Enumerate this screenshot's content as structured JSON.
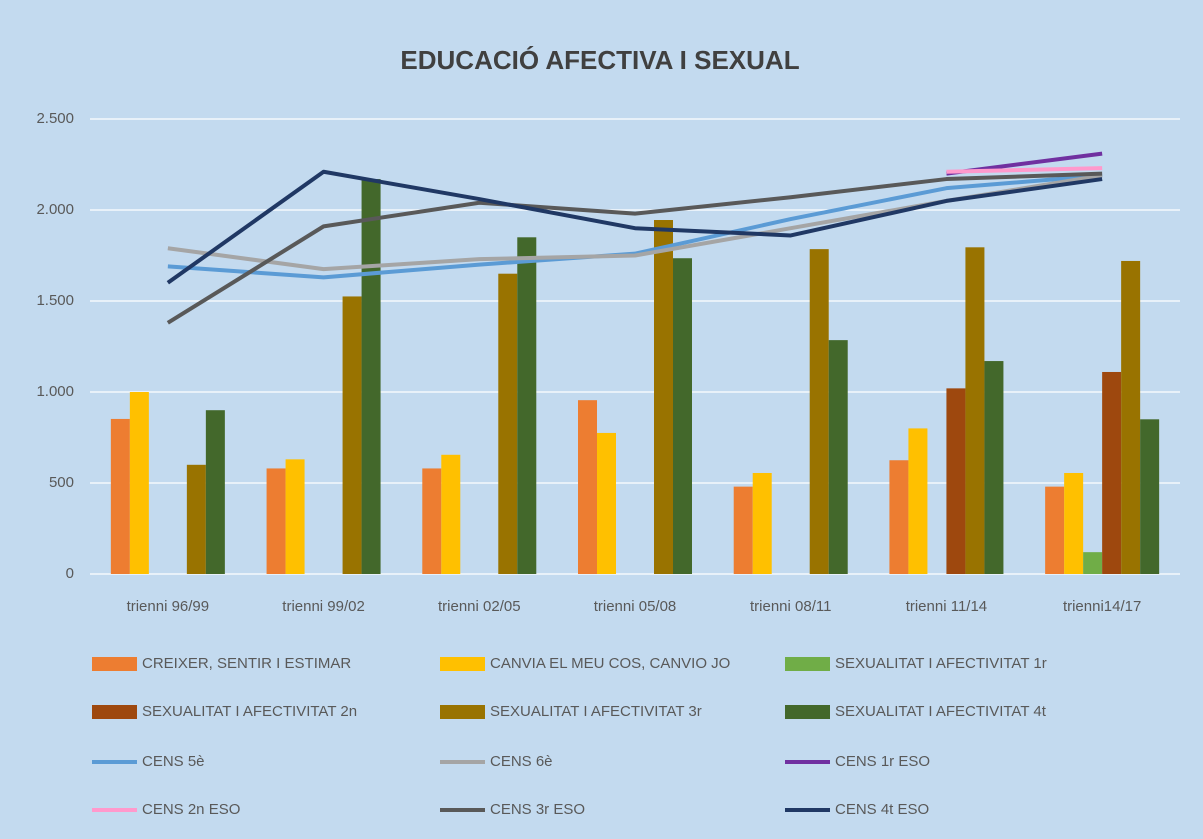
{
  "chart_data": {
    "type": "bar",
    "title": "EDUCACIÓ AFECTIVA I SEXUAL",
    "categories": [
      "trienni 96/99",
      "trienni 99/02",
      "trienni 02/05",
      "trienni 05/08",
      "trienni 08/11",
      "trienni 11/14",
      "trienni14/17"
    ],
    "ylim": [
      0,
      2500
    ],
    "yticks": [
      0,
      500,
      {
        "value": 1000,
        "label": "1.000"
      },
      {
        "value": 1500,
        "label": "1.500"
      },
      {
        "value": 2000,
        "label": "2.000"
      },
      {
        "value": 2500,
        "label": "2.500"
      }
    ],
    "grid": true,
    "legend": "bottom",
    "series": [
      {
        "name": "CREIXER, SENTIR I ESTIMAR",
        "color": "#ed7d31",
        "values": [
          852,
          580,
          580,
          955,
          480,
          625,
          480
        ]
      },
      {
        "name": "CANVIA EL MEU COS, CANVIO JO",
        "color": "#ffc000",
        "values": [
          1000,
          630,
          655,
          775,
          555,
          800,
          555
        ]
      },
      {
        "name": "SEXUALITAT I AFECTIVITAT 1r",
        "color": "#70ad47",
        "values": [
          null,
          null,
          null,
          null,
          null,
          null,
          120
        ]
      },
      {
        "name": "SEXUALITAT I AFECTIVITAT 2n",
        "color": "#9e480e",
        "values": [
          null,
          null,
          null,
          null,
          null,
          1020,
          1110
        ]
      },
      {
        "name": "SEXUALITAT I AFECTIVITAT 3r",
        "color": "#997300",
        "values": [
          600,
          1525,
          1650,
          1945,
          1785,
          1795,
          1720
        ]
      },
      {
        "name": "SEXUALITAT I AFECTIVITAT 4t",
        "color": "#43682b",
        "values": [
          900,
          2170,
          1850,
          1735,
          1285,
          1170,
          850
        ]
      },
      {
        "name": "CENS 5è",
        "type": "line",
        "color": "#5b9bd5",
        "values": [
          1690,
          1630,
          1700,
          1760,
          1950,
          2120,
          2190
        ]
      },
      {
        "name": "CENS 6è",
        "type": "line",
        "color": "#a5a5a5",
        "values": [
          1790,
          1675,
          1730,
          1750,
          1900,
          2050,
          2190
        ]
      },
      {
        "name": "CENS 1r ESO",
        "type": "line",
        "color": "#7030a0",
        "values": [
          null,
          null,
          null,
          null,
          null,
          2200,
          2310
        ]
      },
      {
        "name": "CENS 2n ESO",
        "type": "line",
        "color": "#ff99cc",
        "values": [
          null,
          null,
          null,
          null,
          null,
          2210,
          2230
        ]
      },
      {
        "name": "CENS 3r ESO",
        "type": "line",
        "color": "#595959",
        "values": [
          1380,
          1910,
          2040,
          1980,
          2070,
          2170,
          2200
        ]
      },
      {
        "name": "CENS 4t ESO",
        "type": "line",
        "color": "#203864",
        "values": [
          1600,
          2210,
          2060,
          1900,
          1860,
          2050,
          2170
        ]
      }
    ]
  }
}
